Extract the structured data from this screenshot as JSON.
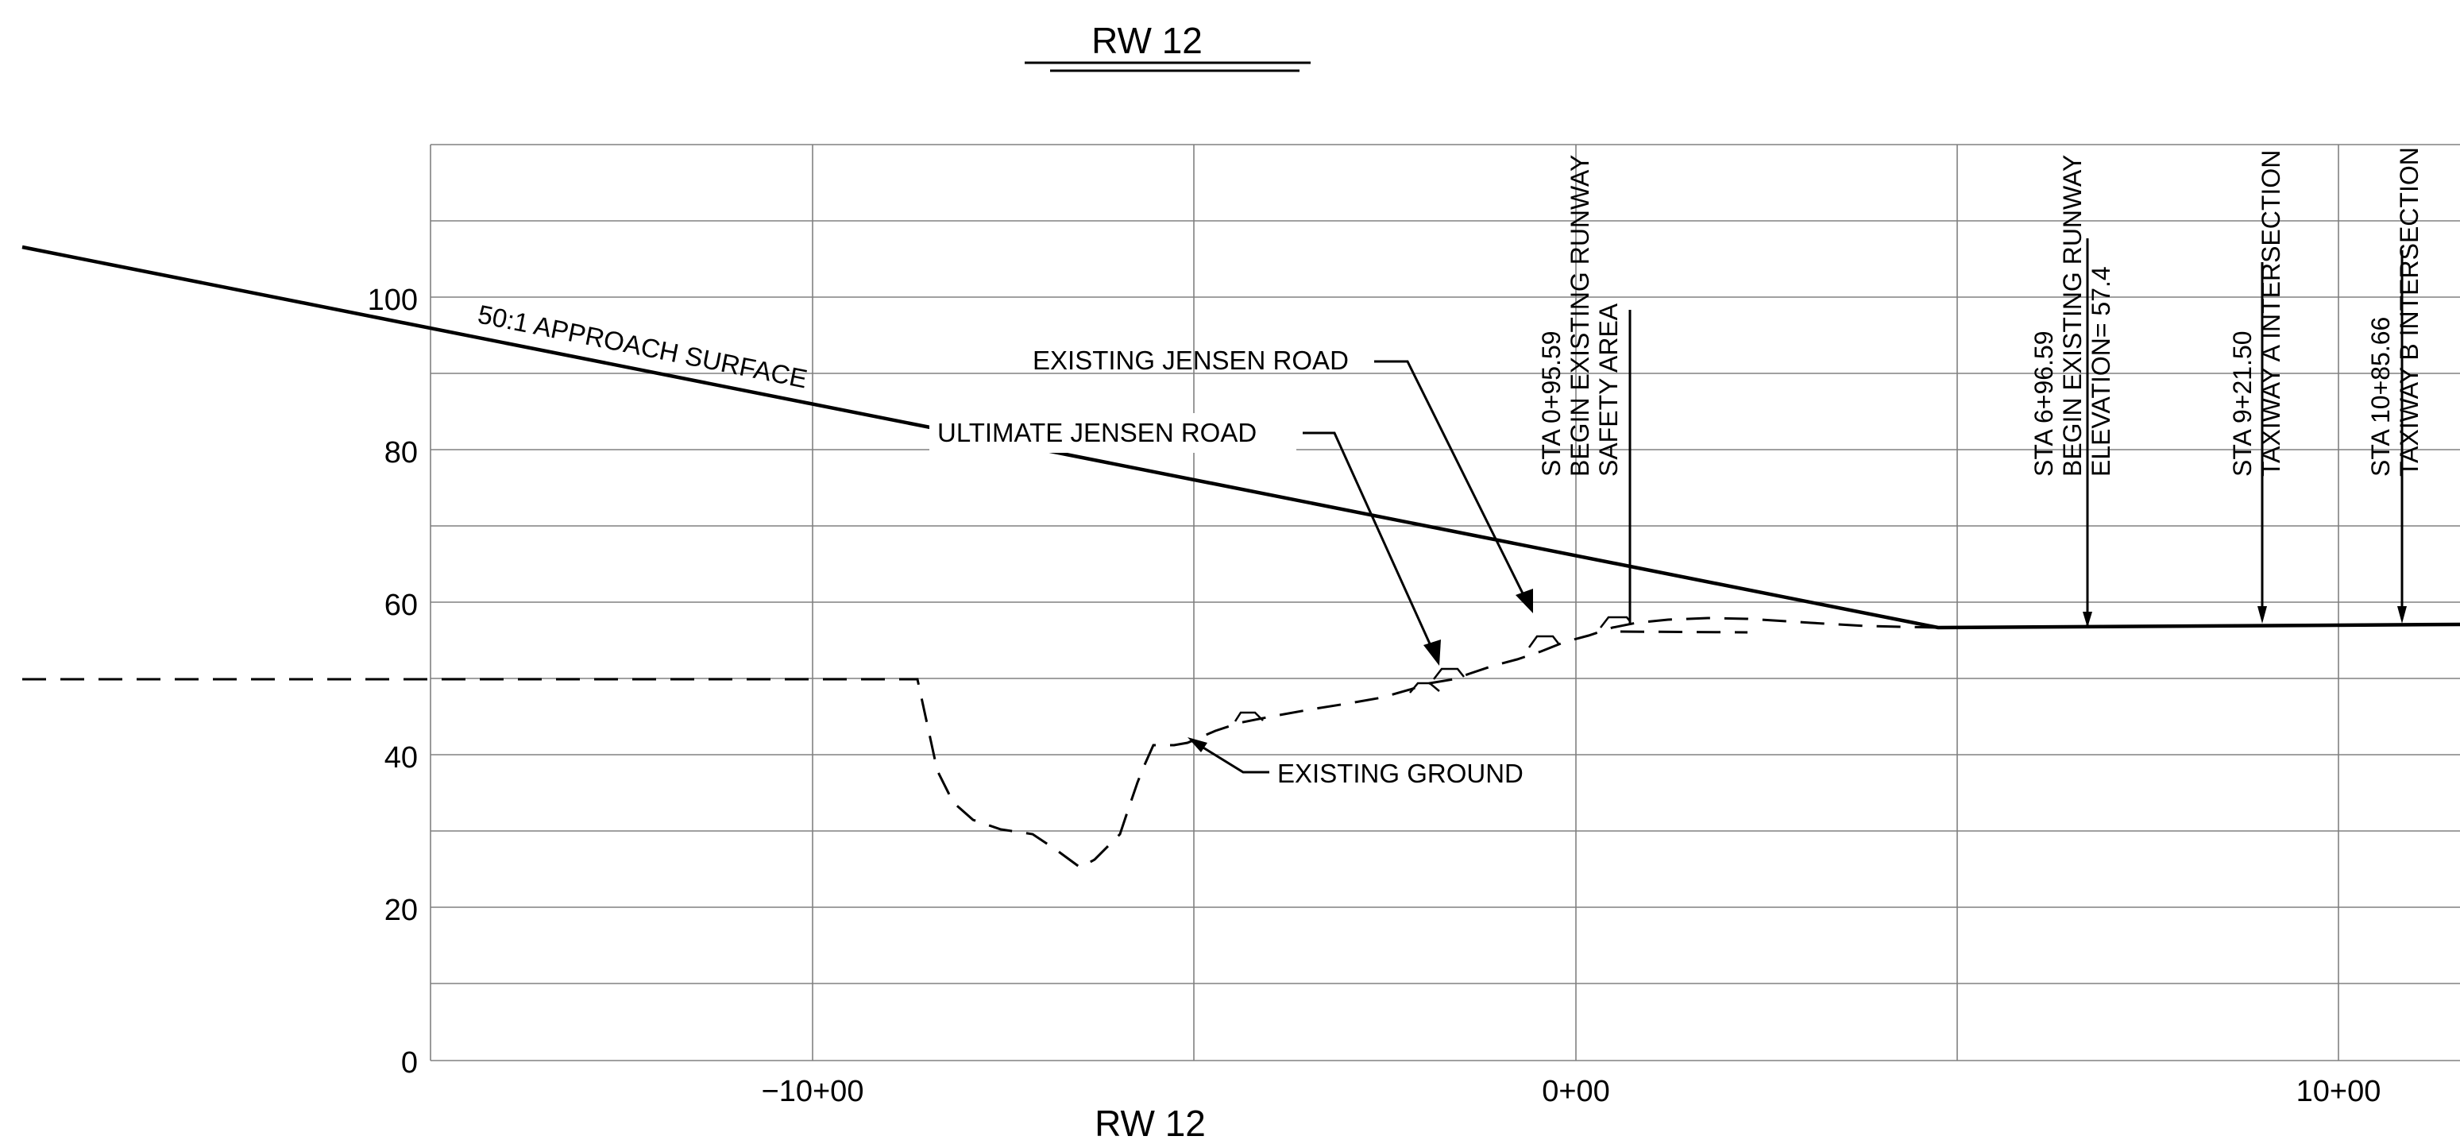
{
  "title": "RW 12",
  "bottom_title": "RW 12",
  "y_ticks": [
    "0",
    "20",
    "40",
    "60",
    "80",
    "100"
  ],
  "x_ticks": [
    "−10+00",
    "0+00",
    "10+00"
  ],
  "surface_label": "50:1 APPROACH SURFACE",
  "callouts": {
    "existing_jensen_road": "EXISTING JENSEN ROAD",
    "ultimate_jensen_road": "ULTIMATE JENSEN ROAD",
    "existing_ground": "EXISTING GROUND"
  },
  "stations": [
    {
      "lines": [
        "STA 0+95.59",
        "BEGIN EXISTING RUNWAY",
        "SAFETY AREA"
      ]
    },
    {
      "lines": [
        "STA 6+96.59",
        "BEGIN EXISTING RUNWAY",
        "ELEVATION= 57.4"
      ]
    },
    {
      "lines": [
        "STA 9+21.50",
        "TAXIWAY A INTERSECTION"
      ]
    },
    {
      "lines": [
        "STA 10+85.66",
        "TAXIWAY B INTERSECTION"
      ]
    }
  ],
  "colors": {
    "line": "#000000",
    "grid": "#808080"
  }
}
